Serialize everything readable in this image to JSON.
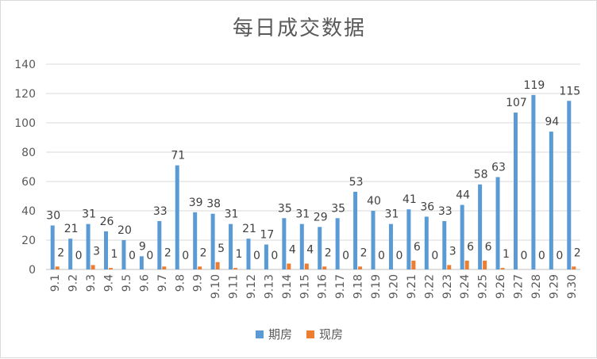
{
  "chart_data": {
    "type": "bar",
    "title": "每日成交数据",
    "categories": [
      "9.1",
      "9.2",
      "9.3",
      "9.4",
      "9.5",
      "9.6",
      "9.7",
      "9.8",
      "9.9",
      "9.10",
      "9.11",
      "9.12",
      "9.13",
      "9.14",
      "9.15",
      "9.16",
      "9.17",
      "9.18",
      "9.19",
      "9.20",
      "9.21",
      "9.22",
      "9.23",
      "9.24",
      "9.25",
      "9.26",
      "9.27",
      "9.28",
      "9.29",
      "9.30"
    ],
    "series": [
      {
        "name": "期房",
        "color": "#5b9bd5",
        "values": [
          30,
          21,
          31,
          26,
          20,
          9,
          33,
          71,
          39,
          38,
          31,
          21,
          17,
          35,
          31,
          29,
          35,
          53,
          40,
          31,
          41,
          36,
          33,
          44,
          58,
          63,
          107,
          119,
          94,
          115
        ]
      },
      {
        "name": "现房",
        "color": "#ed7d31",
        "values": [
          2,
          0,
          3,
          1,
          0,
          0,
          2,
          0,
          2,
          5,
          1,
          0,
          0,
          4,
          4,
          2,
          0,
          2,
          0,
          0,
          6,
          0,
          3,
          6,
          6,
          1,
          0,
          0,
          0,
          2
        ]
      }
    ],
    "y_ticks": [
      "0",
      "20",
      "40",
      "60",
      "80",
      "100",
      "120",
      "140"
    ],
    "ylim": [
      0,
      140
    ],
    "grid": true,
    "legend_position": "bottom"
  }
}
